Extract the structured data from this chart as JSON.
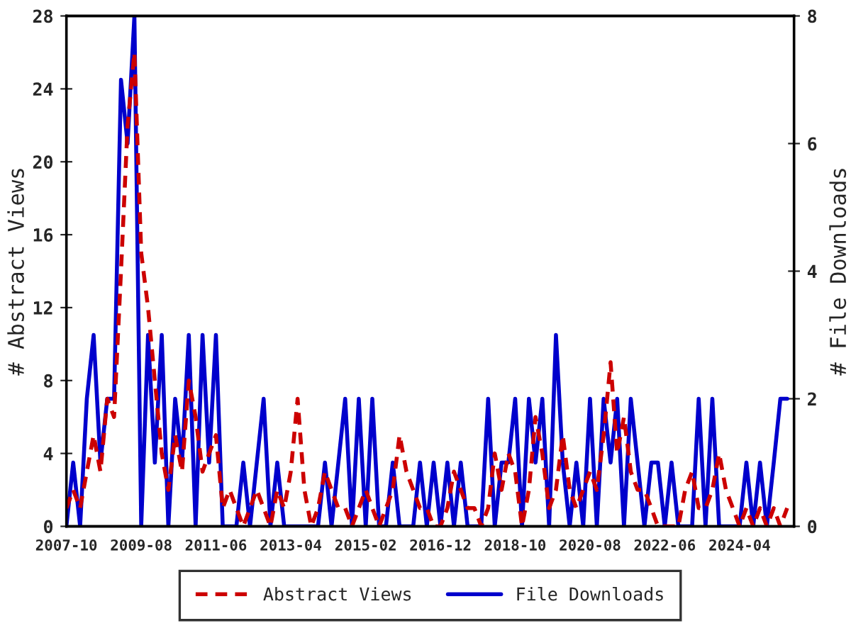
{
  "chart_data": {
    "type": "line",
    "ylabel": "# Abstract Views",
    "y2label": "# File Downloads",
    "x": [
      "2007-10",
      "2007-12",
      "2008-02",
      "2008-04",
      "2008-06",
      "2008-08",
      "2008-10",
      "2008-12",
      "2009-02",
      "2009-04",
      "2009-06",
      "2009-08",
      "2009-10",
      "2009-12",
      "2010-02",
      "2010-04",
      "2010-06",
      "2010-08",
      "2010-10",
      "2010-12",
      "2011-02",
      "2011-04",
      "2011-06",
      "2011-08",
      "2011-10",
      "2011-12",
      "2012-02",
      "2012-04",
      "2012-06",
      "2012-08",
      "2012-10",
      "2012-12",
      "2013-02",
      "2013-04",
      "2013-06",
      "2013-08",
      "2013-10",
      "2013-12",
      "2014-02",
      "2014-04",
      "2014-06",
      "2014-08",
      "2014-10",
      "2014-12",
      "2015-02",
      "2015-04",
      "2015-06",
      "2015-08",
      "2015-10",
      "2015-12",
      "2016-02",
      "2016-04",
      "2016-06",
      "2016-08",
      "2016-10",
      "2016-12",
      "2017-02",
      "2017-04",
      "2017-06",
      "2017-08",
      "2017-10",
      "2017-12",
      "2018-02",
      "2018-04",
      "2018-06",
      "2018-08",
      "2018-10",
      "2018-12",
      "2019-02",
      "2019-04",
      "2019-06",
      "2019-08",
      "2019-10",
      "2019-12",
      "2020-02",
      "2020-04",
      "2020-06",
      "2020-08",
      "2020-10",
      "2020-12",
      "2021-02",
      "2021-04",
      "2021-06",
      "2021-08",
      "2021-10",
      "2021-12",
      "2022-02",
      "2022-04",
      "2022-06",
      "2022-08",
      "2022-10",
      "2022-12",
      "2023-02",
      "2023-04",
      "2023-06",
      "2023-08",
      "2023-10",
      "2023-12",
      "2024-02",
      "2024-04",
      "2024-06",
      "2024-08",
      "2024-10",
      "2024-12",
      "2025-02",
      "2025-04",
      "2025-06"
    ],
    "series": [
      {
        "name": "Abstract Views",
        "color": "#cc0000",
        "line_style": "dashed",
        "axis": "y",
        "values": [
          1,
          2,
          1,
          3,
          5,
          3,
          7,
          6,
          14,
          22,
          26,
          15,
          12,
          8,
          4,
          2,
          5,
          3,
          8,
          6,
          3,
          4,
          5,
          1,
          2,
          1,
          0,
          1,
          2,
          1,
          0,
          2,
          1,
          3,
          7,
          2,
          0,
          1,
          3,
          2,
          1,
          1,
          0,
          1,
          2,
          1,
          0,
          1,
          2,
          5,
          3,
          2,
          1,
          1,
          0,
          0,
          1,
          3,
          2,
          1,
          1,
          0,
          1,
          4,
          2,
          4,
          3,
          0,
          2,
          6,
          4,
          1,
          2,
          5,
          2,
          1,
          2,
          3,
          2,
          5,
          9,
          4,
          6,
          3,
          2,
          2,
          1,
          0,
          0,
          0,
          0,
          2,
          3,
          1,
          1,
          2,
          4,
          2,
          1,
          0,
          1,
          0,
          1,
          0,
          1,
          0,
          1
        ]
      },
      {
        "name": "File Downloads",
        "color": "#0000cc",
        "line_style": "solid",
        "axis": "y2",
        "values": [
          0,
          1,
          0,
          2,
          3,
          1,
          2,
          2,
          7,
          6,
          8,
          0,
          3,
          1,
          3,
          0,
          2,
          1,
          3,
          0,
          3,
          1,
          3,
          0,
          0,
          0,
          1,
          0,
          1,
          2,
          0,
          1,
          0,
          0,
          0,
          0,
          0,
          0,
          1,
          0,
          1,
          2,
          0,
          2,
          0,
          2,
          0,
          0,
          1,
          0,
          0,
          0,
          1,
          0,
          1,
          0,
          1,
          0,
          1,
          0,
          0,
          0,
          2,
          0,
          1,
          1,
          2,
          0,
          2,
          1,
          2,
          0,
          3,
          1,
          0,
          1,
          0,
          2,
          0,
          2,
          1,
          2,
          0,
          2,
          1,
          0,
          1,
          1,
          0,
          1,
          0,
          0,
          0,
          2,
          0,
          2,
          0,
          0,
          0,
          0,
          1,
          0,
          1,
          0,
          1,
          2,
          2
        ]
      }
    ],
    "xlim": [
      "2007-10",
      "2025-08"
    ],
    "xticks": [
      "2007-10",
      "2009-08",
      "2011-06",
      "2013-04",
      "2015-02",
      "2016-12",
      "2018-10",
      "2020-08",
      "2022-06",
      "2024-04"
    ],
    "ylim": [
      0,
      28
    ],
    "yticks": [
      0,
      4,
      8,
      12,
      16,
      20,
      24,
      28
    ],
    "y2lim": [
      0,
      8
    ],
    "y2ticks": [
      0,
      2,
      4,
      6,
      8
    ],
    "grid": false,
    "legend": "bottom",
    "marker": "none"
  }
}
